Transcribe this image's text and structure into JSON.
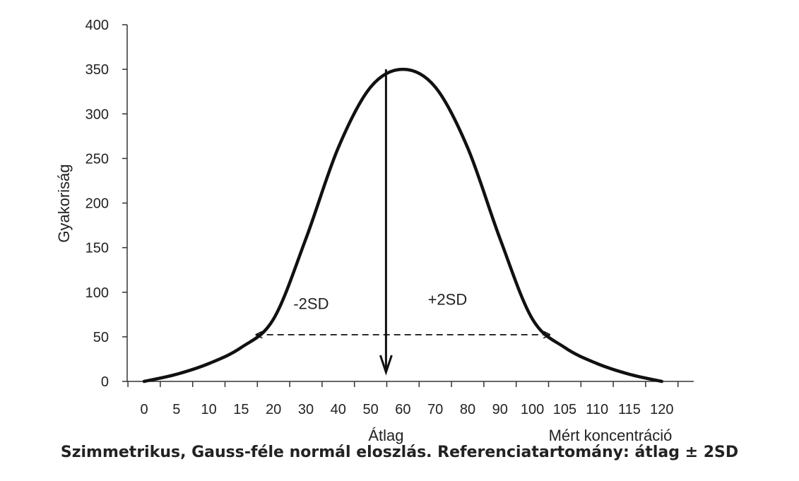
{
  "chart_data": {
    "type": "line",
    "title": "",
    "caption": "Szimmetrikus, Gauss-féle normál eloszlás. Referenciatartomány: átlag ± 2SD",
    "ylabel": "Gyakoriság",
    "xlabel": "Mért koncentráció",
    "mean_label": "Átlag",
    "ylim": [
      0,
      400
    ],
    "yticks": [
      0,
      50,
      100,
      150,
      200,
      250,
      300,
      350,
      400
    ],
    "xtick_labels": [
      "0",
      "5",
      "10",
      "15",
      "20",
      "30",
      "40",
      "50",
      "60",
      "70",
      "80",
      "90",
      "100",
      "105",
      "110",
      "115",
      "120"
    ],
    "mean": {
      "x": "60",
      "y": 350
    },
    "annotations": [
      {
        "text": "-2SD",
        "y": 75
      },
      {
        "text": "+2SD",
        "y": 78
      }
    ],
    "series": [
      {
        "points": [
          [
            0,
            0
          ],
          [
            5,
            8
          ],
          [
            10,
            20
          ],
          [
            15,
            38
          ],
          [
            20,
            70
          ],
          [
            30,
            160
          ],
          [
            40,
            262
          ],
          [
            50,
            330
          ],
          [
            60,
            350
          ],
          [
            70,
            330
          ],
          [
            80,
            262
          ],
          [
            90,
            160
          ],
          [
            100,
            70
          ],
          [
            105,
            38
          ],
          [
            110,
            20
          ],
          [
            115,
            8
          ],
          [
            120,
            0
          ]
        ]
      }
    ],
    "reference_range": {
      "from": "17",
      "to": "103",
      "y": 50
    },
    "grid": false,
    "colors": {
      "curve": "#111111",
      "axis": "#333333",
      "arrows": "#111111"
    }
  }
}
